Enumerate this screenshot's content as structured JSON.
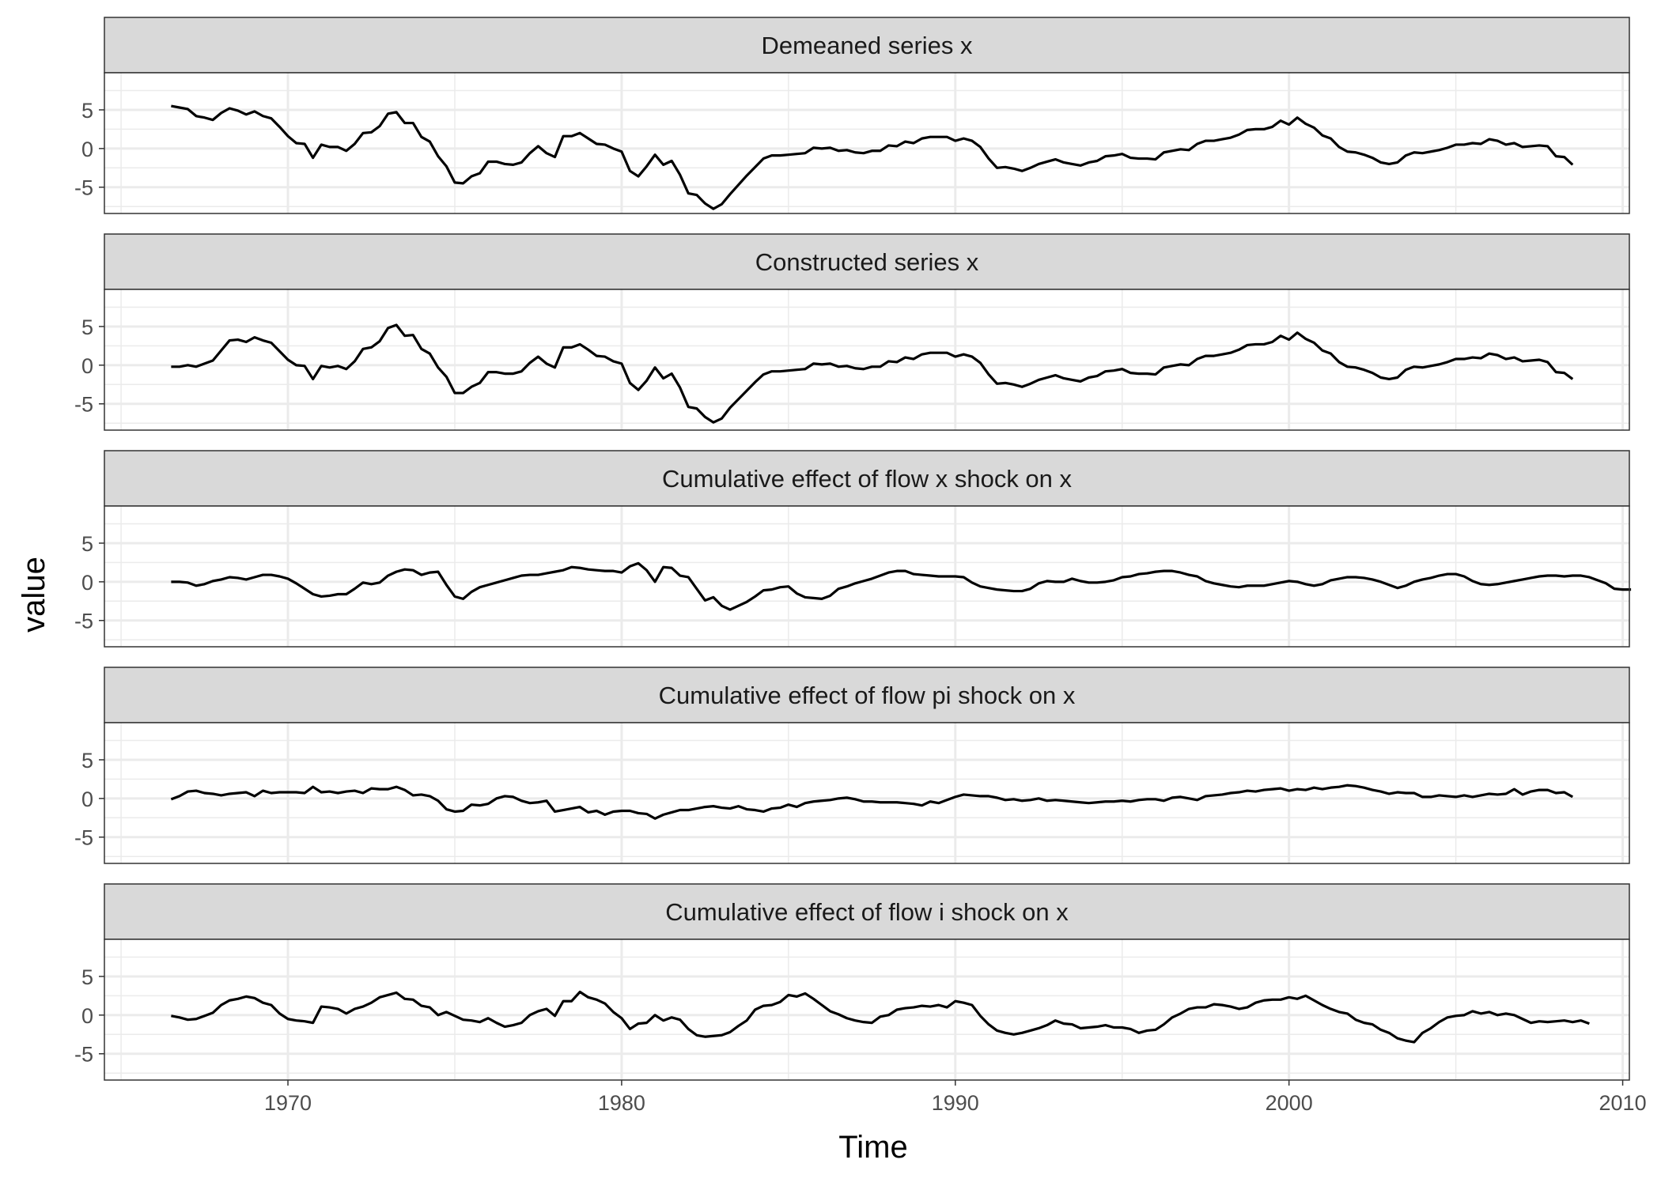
{
  "chart_data": {
    "type": "line",
    "facet_layout": "single column, shared x axis",
    "xlabel": "Time",
    "ylabel": "value",
    "xlim": [
      1964.5,
      2010.2
    ],
    "ylim": [
      -8.4,
      9.8
    ],
    "x_ticks": [
      1970,
      1980,
      1990,
      2000,
      2010
    ],
    "x_tick_labels": [
      "1970",
      "1980",
      "1990",
      "2000",
      "2010"
    ],
    "y_ticks": [
      5,
      0,
      -5
    ],
    "y_tick_labels": [
      "5",
      "0",
      "-5"
    ],
    "x_start": 1966.5,
    "x_step": 0.25,
    "grid": true,
    "theme": "black-and-white with grey strip headers",
    "colors": {
      "line": "#000000",
      "strip_fill": "#d9d9d9",
      "grid": "#ebebeb",
      "border": "#333333"
    },
    "panels": [
      {
        "strip": "Demeaned series  x",
        "values": [
          5.5,
          5.3,
          5.1,
          4.2,
          4.0,
          3.7,
          4.6,
          5.2,
          4.9,
          4.4,
          4.8,
          4.2,
          3.9,
          2.8,
          1.6,
          0.7,
          0.6,
          -1.2,
          0.5,
          0.2,
          0.2,
          -0.3,
          0.6,
          2.0,
          2.1,
          2.9,
          4.5,
          4.7,
          3.3,
          3.3,
          1.5,
          0.9,
          -1.0,
          -2.3,
          -4.4,
          -4.5,
          -3.6,
          -3.2,
          -1.7,
          -1.7,
          -2.0,
          -2.1,
          -1.8,
          -0.6,
          0.3,
          -0.6,
          -1.1,
          1.6,
          1.6,
          2.0,
          1.3,
          0.6,
          0.5,
          0.0,
          -0.4,
          -2.9,
          -3.6,
          -2.3,
          -0.8,
          -2.1,
          -1.6,
          -3.4,
          -5.8,
          -6.0,
          -7.1,
          -7.8,
          -7.2,
          -5.9,
          -4.7,
          -3.5,
          -2.4,
          -1.3,
          -0.9,
          -0.9,
          -0.8,
          -0.7,
          -0.6,
          0.1,
          0.0,
          0.1,
          -0.3,
          -0.2,
          -0.5,
          -0.6,
          -0.3,
          -0.3,
          0.4,
          0.3,
          0.9,
          0.7,
          1.3,
          1.5,
          1.5,
          1.5,
          1.0,
          1.3,
          1.0,
          0.2,
          -1.3,
          -2.5,
          -2.4,
          -2.6,
          -2.9,
          -2.5,
          -2.0,
          -1.7,
          -1.4,
          -1.8,
          -2.0,
          -2.2,
          -1.8,
          -1.6,
          -1.0,
          -0.9,
          -0.7,
          -1.2,
          -1.3,
          -1.3,
          -1.4,
          -0.5,
          -0.3,
          -0.1,
          -0.2,
          0.6,
          1.0,
          1.0,
          1.2,
          1.4,
          1.8,
          2.4,
          2.5,
          2.5,
          2.8,
          3.6,
          3.1,
          4.0,
          3.2,
          2.7,
          1.7,
          1.3,
          0.2,
          -0.4,
          -0.5,
          -0.8,
          -1.2,
          -1.8,
          -2.0,
          -1.8,
          -0.9,
          -0.5,
          -0.6,
          -0.4,
          -0.2,
          0.1,
          0.5,
          0.5,
          0.7,
          0.6,
          1.2,
          1.0,
          0.5,
          0.7,
          0.2,
          0.3,
          0.4,
          0.3,
          -1.0,
          -1.1,
          -2.1
        ]
      },
      {
        "strip": "Constructed series  x",
        "values": [
          -0.2,
          -0.2,
          0.0,
          -0.2,
          0.2,
          0.6,
          1.9,
          3.2,
          3.3,
          3.0,
          3.6,
          3.2,
          2.9,
          1.8,
          0.7,
          0.0,
          -0.1,
          -1.8,
          -0.1,
          -0.3,
          -0.1,
          -0.5,
          0.5,
          2.1,
          2.3,
          3.1,
          4.8,
          5.2,
          3.8,
          3.9,
          2.1,
          1.5,
          -0.3,
          -1.5,
          -3.6,
          -3.6,
          -2.8,
          -2.3,
          -0.9,
          -0.9,
          -1.1,
          -1.1,
          -0.8,
          0.3,
          1.1,
          0.2,
          -0.3,
          2.3,
          2.3,
          2.7,
          2.0,
          1.2,
          1.1,
          0.5,
          0.2,
          -2.3,
          -3.2,
          -2.0,
          -0.3,
          -1.7,
          -1.1,
          -2.9,
          -5.4,
          -5.6,
          -6.7,
          -7.4,
          -6.9,
          -5.5,
          -4.4,
          -3.3,
          -2.2,
          -1.2,
          -0.8,
          -0.8,
          -0.7,
          -0.6,
          -0.5,
          0.2,
          0.1,
          0.2,
          -0.2,
          -0.1,
          -0.4,
          -0.5,
          -0.2,
          -0.2,
          0.5,
          0.4,
          1.0,
          0.8,
          1.4,
          1.6,
          1.6,
          1.6,
          1.1,
          1.4,
          1.1,
          0.3,
          -1.2,
          -2.4,
          -2.3,
          -2.5,
          -2.8,
          -2.4,
          -1.9,
          -1.6,
          -1.3,
          -1.7,
          -1.9,
          -2.1,
          -1.6,
          -1.4,
          -0.8,
          -0.7,
          -0.5,
          -1.0,
          -1.1,
          -1.1,
          -1.2,
          -0.3,
          -0.1,
          0.1,
          0.0,
          0.8,
          1.2,
          1.2,
          1.4,
          1.6,
          2.0,
          2.6,
          2.7,
          2.7,
          3.0,
          3.8,
          3.3,
          4.2,
          3.4,
          2.9,
          1.9,
          1.5,
          0.4,
          -0.2,
          -0.3,
          -0.6,
          -1.0,
          -1.6,
          -1.8,
          -1.6,
          -0.6,
          -0.2,
          -0.3,
          -0.1,
          0.1,
          0.4,
          0.8,
          0.8,
          1.0,
          0.9,
          1.5,
          1.3,
          0.8,
          1.0,
          0.5,
          0.6,
          0.7,
          0.4,
          -0.9,
          -1.0,
          -1.8
        ]
      },
      {
        "strip": "Cumulative effect of flow  x shock on  x",
        "values": [
          0.0,
          0.0,
          -0.1,
          -0.5,
          -0.3,
          0.1,
          0.3,
          0.6,
          0.5,
          0.3,
          0.6,
          0.9,
          0.9,
          0.7,
          0.4,
          -0.2,
          -0.9,
          -1.6,
          -1.9,
          -1.8,
          -1.6,
          -1.6,
          -0.9,
          -0.1,
          -0.3,
          -0.1,
          0.8,
          1.3,
          1.6,
          1.5,
          0.9,
          1.2,
          1.3,
          -0.4,
          -1.9,
          -2.2,
          -1.3,
          -0.7,
          -0.4,
          -0.1,
          0.2,
          0.5,
          0.8,
          0.9,
          0.9,
          1.1,
          1.3,
          1.5,
          1.9,
          1.8,
          1.6,
          1.5,
          1.4,
          1.4,
          1.2,
          2.0,
          2.4,
          1.5,
          0.0,
          1.9,
          1.8,
          0.8,
          0.6,
          -0.9,
          -2.4,
          -2.0,
          -3.1,
          -3.6,
          -3.1,
          -2.6,
          -1.9,
          -1.1,
          -1.0,
          -0.7,
          -0.6,
          -1.5,
          -2.0,
          -2.1,
          -2.2,
          -1.8,
          -0.9,
          -0.6,
          -0.2,
          0.1,
          0.4,
          0.8,
          1.2,
          1.4,
          1.4,
          1.0,
          0.9,
          0.8,
          0.7,
          0.7,
          0.7,
          0.6,
          -0.1,
          -0.6,
          -0.8,
          -1.0,
          -1.1,
          -1.2,
          -1.2,
          -0.9,
          -0.2,
          0.1,
          0.0,
          0.0,
          0.4,
          0.1,
          -0.1,
          -0.1,
          0.0,
          0.2,
          0.6,
          0.7,
          1.0,
          1.1,
          1.3,
          1.4,
          1.4,
          1.2,
          0.9,
          0.7,
          0.1,
          -0.2,
          -0.4,
          -0.6,
          -0.7,
          -0.5,
          -0.5,
          -0.5,
          -0.3,
          -0.1,
          0.1,
          0.0,
          -0.3,
          -0.5,
          -0.3,
          0.2,
          0.4,
          0.6,
          0.6,
          0.5,
          0.3,
          0.0,
          -0.4,
          -0.8,
          -0.5,
          0.0,
          0.3,
          0.5,
          0.8,
          1.0,
          1.0,
          0.7,
          0.1,
          -0.3,
          -0.4,
          -0.3,
          -0.1,
          0.1,
          0.3,
          0.5,
          0.7,
          0.8,
          0.8,
          0.7,
          0.8,
          0.8,
          0.6,
          0.2,
          -0.2,
          -0.9,
          -1.0,
          -1.0
        ]
      },
      {
        "strip": "Cumulative effect of flow  pi shock on  x",
        "values": [
          -0.1,
          0.3,
          0.9,
          1.0,
          0.7,
          0.6,
          0.4,
          0.6,
          0.7,
          0.8,
          0.3,
          1.0,
          0.7,
          0.8,
          0.8,
          0.8,
          0.7,
          1.5,
          0.8,
          0.9,
          0.7,
          0.9,
          1.0,
          0.7,
          1.3,
          1.2,
          1.2,
          1.5,
          1.1,
          0.4,
          0.5,
          0.3,
          -0.3,
          -1.4,
          -1.7,
          -1.6,
          -0.8,
          -0.9,
          -0.7,
          0.0,
          0.3,
          0.2,
          -0.3,
          -0.6,
          -0.5,
          -0.3,
          -1.7,
          -1.5,
          -1.3,
          -1.1,
          -1.8,
          -1.6,
          -2.1,
          -1.7,
          -1.6,
          -1.6,
          -1.9,
          -2.0,
          -2.6,
          -2.1,
          -1.8,
          -1.5,
          -1.5,
          -1.3,
          -1.1,
          -1.0,
          -1.2,
          -1.3,
          -1.0,
          -1.4,
          -1.5,
          -1.7,
          -1.3,
          -1.2,
          -0.8,
          -1.1,
          -0.6,
          -0.4,
          -0.3,
          -0.2,
          0.0,
          0.1,
          -0.1,
          -0.4,
          -0.4,
          -0.5,
          -0.5,
          -0.5,
          -0.6,
          -0.7,
          -0.9,
          -0.4,
          -0.6,
          -0.2,
          0.2,
          0.5,
          0.4,
          0.3,
          0.3,
          0.1,
          -0.2,
          -0.1,
          -0.3,
          -0.2,
          0.0,
          -0.3,
          -0.2,
          -0.3,
          -0.4,
          -0.5,
          -0.6,
          -0.5,
          -0.4,
          -0.4,
          -0.3,
          -0.4,
          -0.2,
          -0.1,
          -0.1,
          -0.3,
          0.1,
          0.2,
          0.0,
          -0.2,
          0.3,
          0.4,
          0.5,
          0.7,
          0.8,
          1.0,
          0.9,
          1.1,
          1.2,
          1.3,
          1.0,
          1.2,
          1.1,
          1.4,
          1.2,
          1.4,
          1.5,
          1.7,
          1.6,
          1.4,
          1.1,
          0.9,
          0.6,
          0.8,
          0.7,
          0.7,
          0.2,
          0.2,
          0.4,
          0.3,
          0.2,
          0.4,
          0.2,
          0.4,
          0.6,
          0.5,
          0.6,
          1.2,
          0.5,
          0.9,
          1.1,
          1.1,
          0.7,
          0.8,
          0.2
        ]
      },
      {
        "strip": "Cumulative effect of flow  i shock on  x",
        "values": [
          -0.1,
          -0.3,
          -0.6,
          -0.5,
          -0.1,
          0.3,
          1.3,
          1.9,
          2.1,
          2.4,
          2.2,
          1.6,
          1.3,
          0.2,
          -0.5,
          -0.7,
          -0.8,
          -1.0,
          1.1,
          1.0,
          0.8,
          0.2,
          0.8,
          1.1,
          1.6,
          2.3,
          2.6,
          2.9,
          2.1,
          2.0,
          1.2,
          1.0,
          0.0,
          0.4,
          -0.1,
          -0.6,
          -0.7,
          -0.9,
          -0.4,
          -1.0,
          -1.5,
          -1.3,
          -1.0,
          0.0,
          0.5,
          0.8,
          -0.1,
          1.8,
          1.8,
          3.0,
          2.3,
          2.0,
          1.5,
          0.4,
          -0.4,
          -1.8,
          -1.1,
          -1.0,
          0.0,
          -0.7,
          -0.3,
          -0.6,
          -1.8,
          -2.6,
          -2.8,
          -2.7,
          -2.6,
          -2.2,
          -1.4,
          -0.7,
          0.7,
          1.2,
          1.3,
          1.7,
          2.6,
          2.4,
          2.8,
          2.1,
          1.3,
          0.5,
          0.1,
          -0.4,
          -0.7,
          -0.9,
          -1.0,
          -0.2,
          0.0,
          0.7,
          0.9,
          1.0,
          1.2,
          1.1,
          1.3,
          1.0,
          1.8,
          1.6,
          1.3,
          -0.1,
          -1.2,
          -2.0,
          -2.3,
          -2.5,
          -2.3,
          -2.0,
          -1.7,
          -1.3,
          -0.7,
          -1.1,
          -1.2,
          -1.7,
          -1.6,
          -1.5,
          -1.3,
          -1.6,
          -1.6,
          -1.8,
          -2.3,
          -2.0,
          -1.9,
          -1.2,
          -0.3,
          0.2,
          0.8,
          1.0,
          1.0,
          1.4,
          1.3,
          1.1,
          0.8,
          1.0,
          1.6,
          1.9,
          2.0,
          2.0,
          2.3,
          2.1,
          2.5,
          1.9,
          1.3,
          0.8,
          0.4,
          0.2,
          -0.6,
          -1.0,
          -1.2,
          -1.9,
          -2.3,
          -3.0,
          -3.3,
          -3.5,
          -2.3,
          -1.7,
          -0.9,
          -0.3,
          -0.1,
          0.0,
          0.5,
          0.2,
          0.4,
          0.0,
          0.2,
          0.0,
          -0.5,
          -1.0,
          -0.8,
          -0.9,
          -0.8,
          -0.7,
          -0.9,
          -0.7,
          -1.1
        ]
      }
    ]
  }
}
